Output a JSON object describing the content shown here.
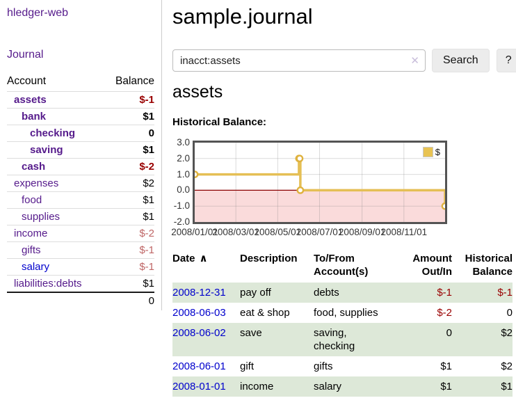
{
  "sidebar": {
    "app_title": "hledger-web",
    "journal_link": "Journal",
    "accounts": {
      "col_account": "Account",
      "col_balance": "Balance",
      "rows": [
        {
          "name": "assets",
          "depth": 1,
          "bold": true,
          "link": "visited",
          "balance": "$-1",
          "balance_class": "neg-strong"
        },
        {
          "name": "bank",
          "depth": 2,
          "bold": true,
          "link": "visited",
          "balance": "$1",
          "balance_class": ""
        },
        {
          "name": "checking",
          "depth": 3,
          "bold": true,
          "link": "visited",
          "balance": "0",
          "balance_class": ""
        },
        {
          "name": "saving",
          "depth": 3,
          "bold": true,
          "link": "visited",
          "balance": "$1",
          "balance_class": ""
        },
        {
          "name": "cash",
          "depth": 2,
          "bold": true,
          "link": "visited",
          "balance": "$-2",
          "balance_class": "neg-strong"
        },
        {
          "name": "expenses",
          "depth": 1,
          "bold": false,
          "link": "visited",
          "balance": "$2",
          "balance_class": ""
        },
        {
          "name": "food",
          "depth": 2,
          "bold": false,
          "link": "visited",
          "balance": "$1",
          "balance_class": ""
        },
        {
          "name": "supplies",
          "depth": 2,
          "bold": false,
          "link": "visited",
          "balance": "$1",
          "balance_class": ""
        },
        {
          "name": "income",
          "depth": 1,
          "bold": false,
          "link": "visited",
          "balance": "$-2",
          "balance_class": "neg-soft"
        },
        {
          "name": "gifts",
          "depth": 2,
          "bold": false,
          "link": "visited",
          "balance": "$-1",
          "balance_class": "neg-soft"
        },
        {
          "name": "salary",
          "depth": 2,
          "bold": false,
          "link": "unvisited",
          "balance": "$-1",
          "balance_class": "neg-soft"
        },
        {
          "name": "liabilities:debts",
          "depth": 1,
          "bold": false,
          "link": "visited",
          "balance": "$1",
          "balance_class": ""
        }
      ],
      "total": "0"
    }
  },
  "main": {
    "title": "sample.journal",
    "search": {
      "value": "inacct:assets",
      "clear_icon": "✕",
      "search_label": "Search",
      "help_label": "?"
    },
    "heading": "assets",
    "chart_title": "Historical Balance:"
  },
  "chart_data": {
    "type": "line",
    "step": true,
    "title": "Historical Balance:",
    "series": [
      {
        "name": "$",
        "color": "#e5bf55",
        "points": [
          [
            "2008-01-01",
            1
          ],
          [
            "2008-06-01",
            2
          ],
          [
            "2008-06-02",
            2
          ],
          [
            "2008-06-03",
            0
          ],
          [
            "2008-12-31",
            -1
          ]
        ]
      }
    ],
    "x_range": [
      "2008-01-01",
      "2008-12-31"
    ],
    "y_range": [
      -2.0,
      3.0
    ],
    "x_ticks": [
      "2008/01/01",
      "2008/03/01",
      "2008/05/01",
      "2008/07/01",
      "2008/09/01",
      "2008/11/01"
    ],
    "y_ticks": [
      3.0,
      2.0,
      1.0,
      0.0,
      -1.0,
      -2.0
    ],
    "grid": true,
    "legend": "$",
    "legend_position": "top-right",
    "negative_region_color": "#fadbdb",
    "zero_line_color": "#8b0000",
    "marker_stroke": "#dfb23e"
  },
  "register": {
    "headers": {
      "date": "Date",
      "sort_icon": "∧",
      "description": "Description",
      "accounts": "To/From Account(s)",
      "amount": "Amount Out/In",
      "balance": "Historical Balance"
    },
    "rows": [
      {
        "date": "2008-12-31",
        "description": "pay off",
        "accounts": "debts",
        "amount": "$-1",
        "amount_negative": true,
        "balance": "$-1",
        "balance_negative": true,
        "shaded": true
      },
      {
        "date": "2008-06-03",
        "description": "eat & shop",
        "accounts": "food, supplies",
        "amount": "$-2",
        "amount_negative": true,
        "balance": "0",
        "balance_negative": false,
        "shaded": false
      },
      {
        "date": "2008-06-02",
        "description": "save",
        "accounts": "saving,\nchecking",
        "amount": "0",
        "amount_negative": false,
        "balance": "$2",
        "balance_negative": false,
        "shaded": true
      },
      {
        "date": "2008-06-01",
        "description": "gift",
        "accounts": "gifts",
        "amount": "$1",
        "amount_negative": false,
        "balance": "$2",
        "balance_negative": false,
        "shaded": false
      },
      {
        "date": "2008-01-01",
        "description": "income",
        "accounts": "salary",
        "amount": "$1",
        "amount_negative": false,
        "balance": "$1",
        "balance_negative": false,
        "shaded": true
      }
    ]
  }
}
